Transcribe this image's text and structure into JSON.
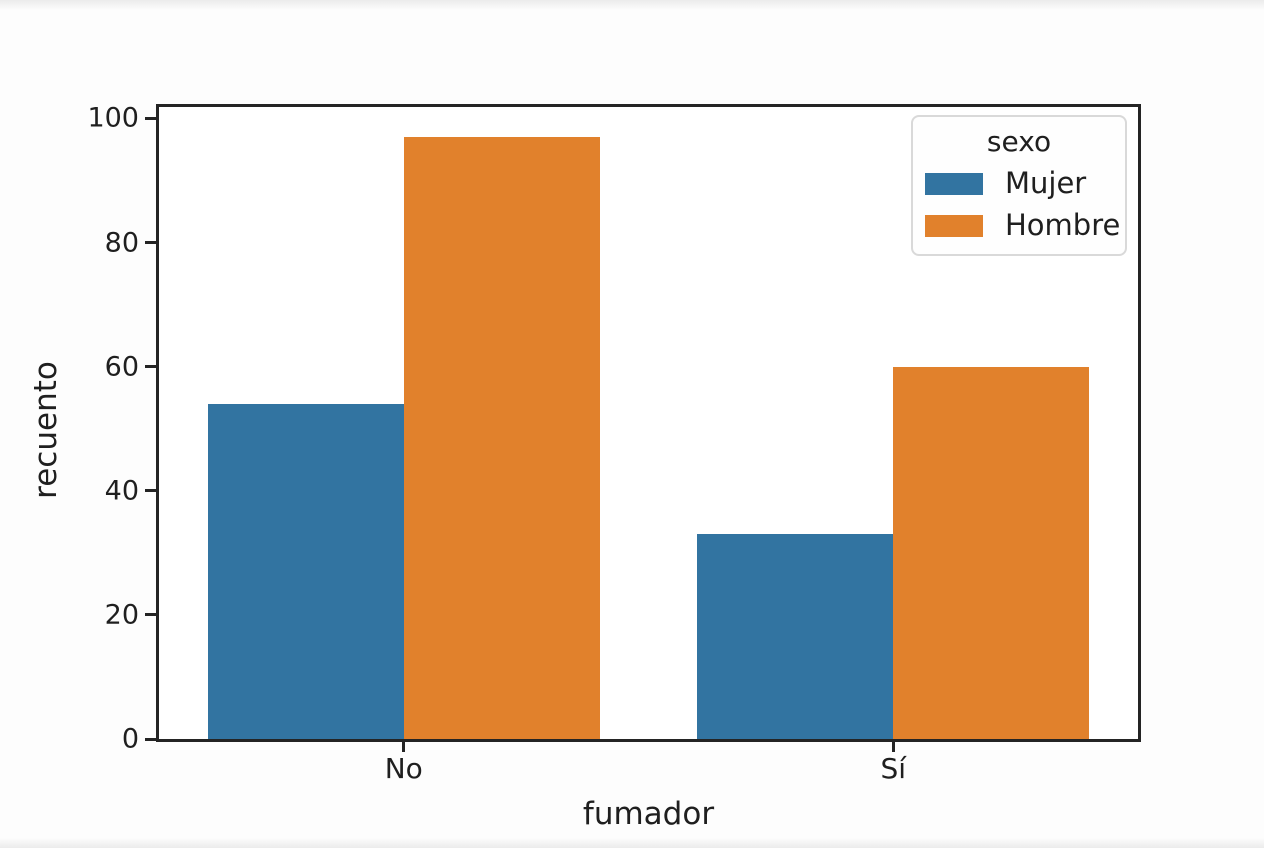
{
  "chart_data": {
    "type": "bar",
    "title": "",
    "xlabel": "fumador",
    "ylabel": "recuento",
    "categories": [
      "No",
      "Sí"
    ],
    "series": [
      {
        "name": "Mujer",
        "color": "#3274a1",
        "values": [
          54,
          33
        ]
      },
      {
        "name": "Hombre",
        "color": "#e1812c",
        "values": [
          97,
          60
        ]
      }
    ],
    "ylim": [
      0,
      101.85
    ],
    "yticks": [
      0,
      20,
      40,
      60,
      80,
      100
    ],
    "legend_title": "sexo",
    "legend_position": "upper right",
    "grid": false,
    "bar_group_width": 0.8
  },
  "colors": {
    "spine": "#242424",
    "text": "#1f1f1f",
    "legend_border": "#d9d9d9",
    "background": "#ffffff"
  }
}
